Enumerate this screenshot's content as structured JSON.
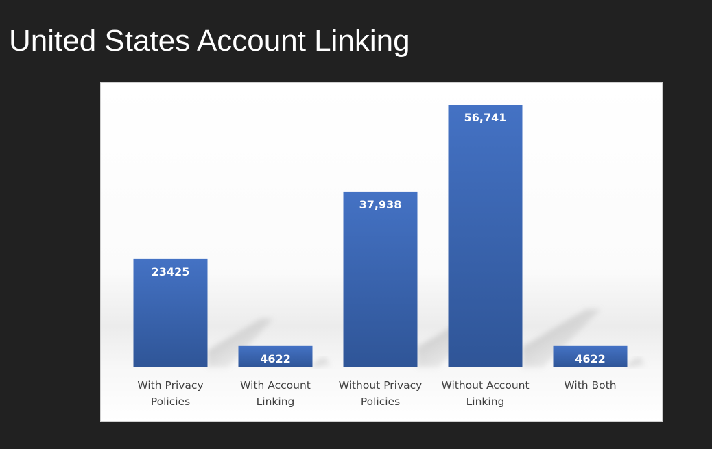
{
  "slide": {
    "title": "United States Account Linking"
  },
  "chart_data": {
    "type": "bar",
    "categories": [
      [
        "With Privacy",
        "Policies"
      ],
      [
        "With Account",
        "Linking"
      ],
      [
        "Without Privacy",
        "Policies"
      ],
      [
        "Without Account",
        "Linking"
      ],
      [
        "With Both"
      ]
    ],
    "values": [
      23425,
      4622,
      37938,
      56741,
      4622
    ],
    "data_labels": [
      "23425",
      "4622",
      "37,938",
      "56,741",
      "4622"
    ],
    "ylim": [
      0,
      60000
    ],
    "grid": false,
    "legend": "none",
    "colors": {
      "bar_top": "#4472c4",
      "bar_bottom": "#2f5597",
      "background": "#ffffff",
      "slide_background": "#212121"
    }
  }
}
